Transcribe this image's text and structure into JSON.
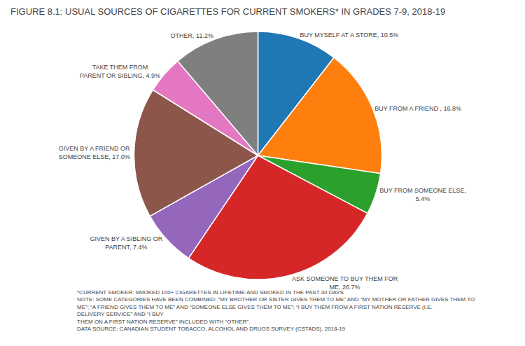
{
  "chart_data": {
    "type": "pie",
    "title": "FIGURE 8.1: USUAL SOURCES OF CIGARETTES FOR CURRENT SMOKERS* IN GRADES 7-9, 2018-19",
    "categories": [
      "BUY MYSELF AT A STORE, 10.5%",
      "BUY FROM A FRIEND , 16.8%",
      "BUY FROM SOMEONE ELSE,\n5.4%",
      "ASK SOMEONE TO BUY THEM FOR\nME, 26.7%",
      "GIVEN BY A SIBLING OR\nPARENT, 7.4%",
      "GIVEN BY A FRIEND OR\nSOMEONE ELSE, 17.0%",
      "TAKE THEM FROM\nPARENT OR SIBLING, 4.9%",
      "OTHER, 11.2%"
    ],
    "values": [
      10.5,
      16.8,
      5.4,
      26.7,
      7.4,
      17.0,
      4.9,
      11.2
    ],
    "annotations": [
      "*CURRENT SMOKER: SMOKED 100+ CIGARETTES IN LIFETIME AND SMOKED IN THE PAST 30 DAYS",
      "NOTE: SOME CATEGORIES HAVE BEEN COMBINED: “MY BROTHER OR SISTER GIVES THEM TO ME” AND “MY MOTHER OR FATHER GIVES THEM TO ME”; “A FRIEND GIVES THEM TO ME” AND “SOMEONE ELSE GIVES THEM TO ME”; “I BUY THEM FROM A FIRST NATION RESERVE (I.E. DELIVERY SERVICE” AND “I BUY\nTHEM ON A FIRST NATION RESERVE” INCLUDED WITH “OTHER”.",
      "DATA SOURCE: CANADIAN STUDENT TOBACCO, ALCOHOL AND DRUGS SURVEY (CSTADS), 2018-19"
    ]
  }
}
